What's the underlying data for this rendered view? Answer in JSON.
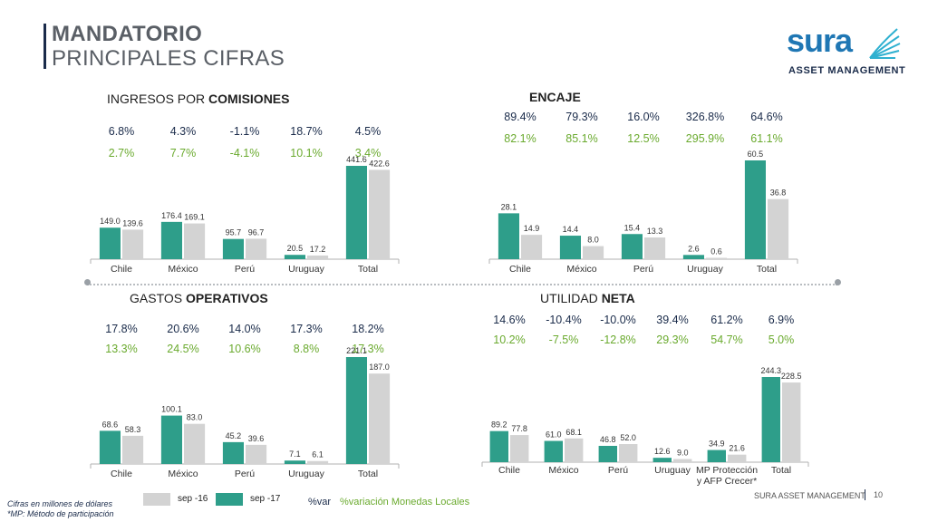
{
  "header": {
    "title_line1": "MANDATORIO",
    "title_line2": "PRINCIPALES CIFRAS"
  },
  "logo": {
    "word": "sura",
    "subtitle": "ASSET MANAGEMENT"
  },
  "sections": {
    "ingresos": {
      "title_normal": "INGRESOS POR ",
      "title_bold": "COMISIONES"
    },
    "encaje": {
      "title_normal": "",
      "title_bold": "ENCAJE"
    },
    "gastos": {
      "title_normal": "GASTOS ",
      "title_bold": "OPERATIVOS"
    },
    "utilidad": {
      "title_normal": "UTILIDAD ",
      "title_bold": "NETA"
    }
  },
  "colors": {
    "sep17": "#2e9e8a",
    "sep16": "#d3d3d3",
    "var": "#1a2b4a",
    "local": "#6aaa2e",
    "axis": "#b0b0b0"
  },
  "chart_data": [
    {
      "id": "ingresos",
      "type": "bar",
      "categories": [
        "Chile",
        "México",
        "Perú",
        "Uruguay",
        "Total"
      ],
      "series": [
        {
          "name": "sep -17",
          "values": [
            149.0,
            176.4,
            95.7,
            20.5,
            441.6
          ],
          "labels": [
            "149.0",
            "176.4",
            "95.7",
            "20.5",
            "441.6"
          ]
        },
        {
          "name": "sep -16",
          "values": [
            139.6,
            169.1,
            96.7,
            17.2,
            422.6
          ],
          "labels": [
            "139.6",
            "169.1",
            "96.7",
            "17.2",
            "422.6"
          ]
        }
      ],
      "var": [
        "6.8%",
        "4.3%",
        "-1.1%",
        "18.7%",
        "4.5%"
      ],
      "var_local": [
        "2.7%",
        "7.7%",
        "-4.1%",
        "10.1%",
        "3.4%"
      ],
      "ylim": [
        0,
        441.6
      ]
    },
    {
      "id": "encaje",
      "type": "bar",
      "categories": [
        "Chile",
        "México",
        "Perú",
        "Uruguay",
        "Total"
      ],
      "series": [
        {
          "name": "sep -17",
          "values": [
            28.1,
            14.4,
            15.4,
            2.6,
            60.5
          ],
          "labels": [
            "28.1",
            "14.4",
            "15.4",
            "2.6",
            "60.5"
          ]
        },
        {
          "name": "sep -16",
          "values": [
            14.9,
            8.0,
            13.3,
            0.6,
            36.8
          ],
          "labels": [
            "14.9",
            "8.0",
            "13.3",
            "0.6",
            "36.8"
          ]
        }
      ],
      "var": [
        "89.4%",
        "79.3%",
        "16.0%",
        "326.8%",
        "64.6%"
      ],
      "var_local": [
        "82.1%",
        "85.1%",
        "12.5%",
        "295.9%",
        "61.1%"
      ],
      "ylim": [
        0,
        60.5
      ]
    },
    {
      "id": "gastos",
      "type": "bar",
      "categories": [
        "Chile",
        "México",
        "Perú",
        "Uruguay",
        "Total"
      ],
      "series": [
        {
          "name": "sep -17",
          "values": [
            68.6,
            100.1,
            45.2,
            7.1,
            221.1
          ],
          "labels": [
            "68.6",
            "100.1",
            "45.2",
            "7.1",
            "221.1"
          ]
        },
        {
          "name": "sep -16",
          "values": [
            58.3,
            83.0,
            39.6,
            6.1,
            187.0
          ],
          "labels": [
            "58.3",
            "83.0",
            "39.6",
            "6.1",
            "187.0"
          ]
        }
      ],
      "var": [
        "17.8%",
        "20.6%",
        "14.0%",
        "17.3%",
        "18.2%"
      ],
      "var_local": [
        "13.3%",
        "24.5%",
        "10.6%",
        "8.8%",
        "17.3%"
      ],
      "ylim": [
        0,
        221.1
      ]
    },
    {
      "id": "utilidad",
      "type": "bar",
      "categories": [
        "Chile",
        "México",
        "Perú",
        "Uruguay",
        "MP Protección y AFP Crecer*",
        "Total"
      ],
      "series": [
        {
          "name": "sep -17",
          "values": [
            89.2,
            61.0,
            46.8,
            12.6,
            34.9,
            244.3
          ],
          "labels": [
            "89.2",
            "61.0",
            "46.8",
            "12.6",
            "34.9",
            "244.3"
          ]
        },
        {
          "name": "sep -16",
          "values": [
            77.8,
            68.1,
            52.0,
            9.0,
            21.6,
            228.5
          ],
          "labels": [
            "77.8",
            "68.1",
            "52.0",
            "9.0",
            "21.6",
            "228.5"
          ]
        }
      ],
      "var": [
        "14.6%",
        "-10.4%",
        "-10.0%",
        "39.4%",
        "61.2%",
        "6.9%"
      ],
      "var_local": [
        "10.2%",
        "-7.5%",
        "-12.8%",
        "29.3%",
        "54.7%",
        "5.0%"
      ],
      "ylim": [
        0,
        244.3
      ]
    }
  ],
  "legend": {
    "sep16_label": "sep -16",
    "sep17_label": "sep -17",
    "var_label": "%var",
    "local_label": "%variación Monedas Locales"
  },
  "footer": {
    "note1": "Cifras en millones de dólares",
    "note2": "*MP: Método de participación",
    "brand": "SURA ASSET MANAGEMENT",
    "page": "10"
  }
}
